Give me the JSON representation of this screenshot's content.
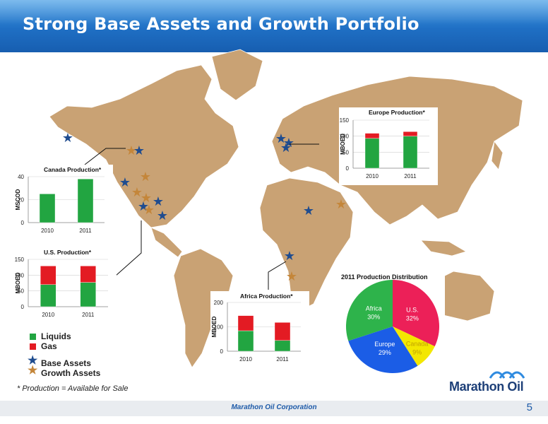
{
  "title": "Strong Base Assets and Growth Portfolio",
  "colors": {
    "liquids": "#22a541",
    "gas": "#e31b23",
    "base_star": "#1f4c8f",
    "growth_star": "#c4863a",
    "land": "#c9a274",
    "ocean": "#ffffff",
    "pie_africa": "#2eb34b",
    "pie_us": "#ec2058",
    "pie_canada": "#f3e700",
    "pie_europe": "#1b5de6"
  },
  "legend": {
    "liquids": "Liquids",
    "gas": "Gas",
    "base_assets": "Base Assets",
    "growth_assets": "Growth Assets"
  },
  "footnote": "* Production = Available for Sale",
  "footer": {
    "company": "Marathon Oil Corporation",
    "page": "5"
  },
  "logo_text": "Marathon Oil",
  "chart_data": [
    {
      "type": "bar",
      "title": "Canada Production*",
      "ylabel": "MSCOD",
      "categories": [
        "2010",
        "2011"
      ],
      "ylim": [
        0,
        40
      ],
      "yticks": [
        "0",
        "20",
        "40"
      ],
      "series": [
        {
          "values": [
            25,
            38
          ]
        }
      ]
    },
    {
      "type": "bar",
      "stacked": true,
      "title": "U.S. Production*",
      "ylabel": "MBOED",
      "categories": [
        "2010",
        "2011"
      ],
      "ylim": [
        0,
        150
      ],
      "yticks": [
        "0",
        "50",
        "100",
        "150"
      ],
      "series": [
        {
          "name": "Liquids",
          "values": [
            70,
            77
          ]
        },
        {
          "name": "Gas",
          "values": [
            59,
            52
          ]
        }
      ]
    },
    {
      "type": "bar",
      "stacked": true,
      "title": "Europe Production*",
      "ylabel": "MBOED",
      "categories": [
        "2010",
        "2011"
      ],
      "ylim": [
        0,
        150
      ],
      "yticks": [
        "0",
        "50",
        "100",
        "150"
      ],
      "series": [
        {
          "name": "Liquids",
          "values": [
            93,
            100
          ]
        },
        {
          "name": "Gas",
          "values": [
            16,
            14
          ]
        }
      ]
    },
    {
      "type": "bar",
      "stacked": true,
      "title": "Africa Production*",
      "ylabel": "MBOED",
      "categories": [
        "2010",
        "2011"
      ],
      "ylim": [
        0,
        200
      ],
      "yticks": [
        "0",
        "100",
        "200"
      ],
      "series": [
        {
          "name": "Liquids",
          "values": [
            84,
            44
          ]
        },
        {
          "name": "Gas",
          "values": [
            62,
            74
          ]
        }
      ]
    },
    {
      "type": "pie",
      "title": "2011 Production Distribution",
      "slices": [
        {
          "label": "U.S.",
          "pct": "32%",
          "value": 32
        },
        {
          "label": "Canada",
          "pct": "9%",
          "value": 9
        },
        {
          "label": "Europe",
          "pct": "29%",
          "value": 29
        },
        {
          "label": "Africa",
          "pct": "30%",
          "value": 30
        }
      ]
    }
  ]
}
